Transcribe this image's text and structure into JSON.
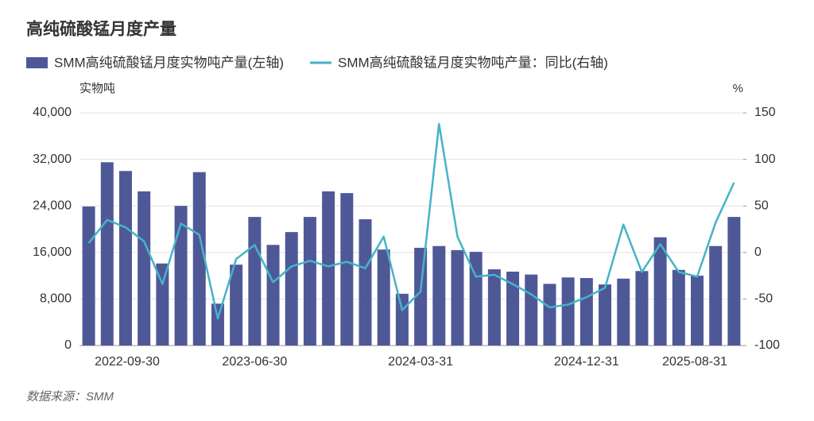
{
  "chart_data": {
    "type": "bar",
    "title": "高纯硫酸锰月度产量",
    "y_label": "实物吨",
    "y2_label": "%",
    "source": "数据来源：SMM",
    "categories": [
      "2022-09-30",
      null,
      null,
      null,
      null,
      null,
      null,
      null,
      null,
      "2023-06-30",
      null,
      null,
      null,
      null,
      null,
      null,
      null,
      null,
      "2024-03-31",
      null,
      null,
      null,
      null,
      null,
      null,
      null,
      null,
      "2024-12-31",
      null,
      null,
      null,
      null,
      null,
      null,
      null,
      "2025-08-31"
    ],
    "series": [
      {
        "name": "SMM高纯硫酸锰月度实物吨产量(左轴)",
        "type": "bar",
        "color": "#4f5897",
        "values": [
          23900,
          31500,
          30000,
          26500,
          14100,
          24000,
          29800,
          7200,
          13900,
          22100,
          17300,
          19500,
          22100,
          26500,
          26200,
          21700,
          16500,
          8900,
          16800,
          17100,
          16400,
          16100,
          13100,
          12700,
          12200,
          10600,
          11700,
          11600,
          10500,
          11500,
          12800,
          18600,
          13000,
          12000,
          17100,
          22100
        ]
      },
      {
        "name": "SMM高纯硫酸锰月度实物吨产量：同比(右轴)",
        "type": "line",
        "axis": "y2",
        "color": "#45b3c9",
        "values": [
          10,
          35,
          27,
          12,
          -34,
          31,
          19,
          -71,
          -7,
          8,
          -32,
          -15,
          -9,
          -15,
          -10,
          -17,
          17,
          -62,
          -42,
          138,
          17,
          -26,
          -24,
          -34,
          -45,
          -59,
          -56,
          -48,
          -38,
          30,
          -21,
          9,
          -21,
          -26,
          32,
          75
        ]
      }
    ],
    "ylim": [
      0,
      40000
    ],
    "yticks": [
      0,
      {
        "value": 8000,
        "label": "8,000"
      },
      {
        "value": 16000,
        "label": "16,000"
      },
      {
        "value": 24000,
        "label": "24,000"
      },
      {
        "value": 32000,
        "label": "32,000"
      },
      {
        "value": 40000,
        "label": "40,000"
      }
    ],
    "y2lim": [
      -100,
      150
    ],
    "y2ticks": [
      -100,
      -50,
      0,
      50,
      100,
      150
    ],
    "grid": true
  }
}
